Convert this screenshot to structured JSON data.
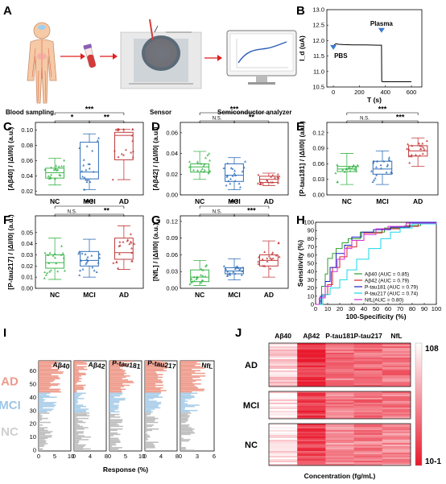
{
  "colors": {
    "nc": "#3ab54a",
    "mci": "#2f6fb8",
    "ad": "#c23b3b",
    "nc_bar": "#bdbdbd",
    "mci_bar": "#a9cde8",
    "ad_bar": "#ee9a8a"
  },
  "panel_letters": {
    "a": "A",
    "b": "B",
    "c": "C",
    "d": "D",
    "e": "E",
    "f": "F",
    "g": "G",
    "h": "H",
    "i": "I",
    "j": "J"
  },
  "panel_a": {
    "step1": "Blood sampling",
    "step2": "Sensor",
    "step3": "Semiconductor analyzer"
  },
  "chart_data": [
    {
      "id": "B",
      "type": "line",
      "xlabel": "T (s)",
      "ylabel": "I_d (uA)",
      "xlim": [
        -50,
        680
      ],
      "ylim": [
        10.5,
        13.0
      ],
      "xticks": [
        0,
        200,
        400,
        600
      ],
      "yticks": [
        10.5,
        11.0,
        11.5,
        12.0,
        12.5,
        13.0
      ],
      "annotations": [
        {
          "text": "PBS",
          "x": 0
        },
        {
          "text": "Plasma",
          "x": 370
        }
      ],
      "x": [
        0,
        10,
        20,
        40,
        80,
        150,
        250,
        340,
        370,
        372,
        380,
        450,
        550,
        600
      ],
      "y": [
        11.82,
        11.87,
        11.9,
        11.88,
        11.87,
        11.86,
        11.86,
        11.85,
        11.85,
        10.68,
        10.67,
        10.67,
        10.67,
        10.67
      ]
    },
    {
      "id": "C",
      "type": "box",
      "ylabel": "[Aβ40] / |ΔI/I0| (a.u.)",
      "categories": [
        "NC",
        "MCI",
        "AD"
      ],
      "ylim": [
        0.015,
        0.11
      ],
      "yticks": [
        0.02,
        0.04,
        0.06,
        0.08,
        0.1
      ],
      "boxes": [
        {
          "group": "NC",
          "min": 0.028,
          "q1": 0.037,
          "median": 0.044,
          "q3": 0.05,
          "max": 0.063
        },
        {
          "group": "MCI",
          "min": 0.022,
          "q1": 0.036,
          "median": 0.045,
          "q3": 0.084,
          "max": 0.095
        },
        {
          "group": "AD",
          "min": 0.035,
          "q1": 0.061,
          "median": 0.093,
          "q3": 0.097,
          "max": 0.101
        }
      ],
      "significance": [
        {
          "pair": [
            "NC",
            "AD"
          ],
          "text": "***"
        },
        {
          "pair": [
            "NC",
            "MCI"
          ],
          "text": "*"
        },
        {
          "pair": [
            "MCI",
            "AD"
          ],
          "text": "**"
        }
      ]
    },
    {
      "id": "D",
      "type": "box",
      "ylabel": "[Aβ42] / |ΔI/I0| (a.u.)",
      "categories": [
        "NC",
        "MCI",
        "AD"
      ],
      "ylim": [
        0,
        0.07
      ],
      "yticks": [
        0.0,
        0.02,
        0.04,
        0.06
      ],
      "boxes": [
        {
          "group": "NC",
          "min": 0.015,
          "q1": 0.022,
          "median": 0.027,
          "q3": 0.03,
          "max": 0.042
        },
        {
          "group": "MCI",
          "min": 0.005,
          "q1": 0.013,
          "median": 0.019,
          "q3": 0.03,
          "max": 0.036
        },
        {
          "group": "AD",
          "min": 0.009,
          "q1": 0.012,
          "median": 0.015,
          "q3": 0.018,
          "max": 0.021
        }
      ],
      "significance": [
        {
          "pair": [
            "NC",
            "AD"
          ],
          "text": "***"
        },
        {
          "pair": [
            "NC",
            "MCI"
          ],
          "text": "N.S."
        },
        {
          "pair": [
            "MCI",
            "AD"
          ],
          "text": "**"
        }
      ]
    },
    {
      "id": "E",
      "type": "box",
      "ylabel": "[P-tau181] / |ΔI/I0| (a.u.)",
      "categories": [
        "NC",
        "MCI",
        "AD"
      ],
      "ylim": [
        0,
        0.14
      ],
      "yticks": [
        0.0,
        0.03,
        0.06,
        0.09,
        0.12
      ],
      "boxes": [
        {
          "group": "NC",
          "min": 0.02,
          "q1": 0.045,
          "median": 0.05,
          "q3": 0.055,
          "max": 0.08
        },
        {
          "group": "MCI",
          "min": 0.02,
          "q1": 0.04,
          "median": 0.05,
          "q3": 0.065,
          "max": 0.085
        },
        {
          "group": "AD",
          "min": 0.055,
          "q1": 0.075,
          "median": 0.085,
          "q3": 0.095,
          "max": 0.11
        }
      ],
      "significance": [
        {
          "pair": [
            "NC",
            "AD"
          ],
          "text": "***"
        },
        {
          "pair": [
            "NC",
            "MCI"
          ],
          "text": "N.S."
        },
        {
          "pair": [
            "MCI",
            "AD"
          ],
          "text": "***"
        }
      ]
    },
    {
      "id": "F",
      "type": "box",
      "ylabel": "[P-tau217] / |ΔI/I0| (a.u.)",
      "categories": [
        "NC",
        "MCI",
        "AD"
      ],
      "ylim": [
        0,
        0.065
      ],
      "yticks": [
        0.0,
        0.01,
        0.02,
        0.03,
        0.04,
        0.05
      ],
      "boxes": [
        {
          "group": "NC",
          "min": 0.008,
          "q1": 0.018,
          "median": 0.023,
          "q3": 0.03,
          "max": 0.045
        },
        {
          "group": "MCI",
          "min": 0.01,
          "q1": 0.02,
          "median": 0.025,
          "q3": 0.033,
          "max": 0.044
        },
        {
          "group": "AD",
          "min": 0.017,
          "q1": 0.026,
          "median": 0.032,
          "q3": 0.045,
          "max": 0.056
        }
      ],
      "significance": [
        {
          "pair": [
            "NC",
            "AD"
          ],
          "text": "***"
        },
        {
          "pair": [
            "NC",
            "MCI"
          ],
          "text": "N.S."
        },
        {
          "pair": [
            "MCI",
            "AD"
          ],
          "text": "**"
        }
      ]
    },
    {
      "id": "G",
      "type": "box",
      "ylabel": "[NfL] / |ΔI/I0| (a.u.)",
      "categories": [
        "NC",
        "MCI",
        "AD"
      ],
      "ylim": [
        0,
        0.13
      ],
      "yticks": [
        0.0,
        0.03,
        0.06,
        0.09,
        0.12
      ],
      "boxes": [
        {
          "group": "NC",
          "min": 0.005,
          "q1": 0.012,
          "median": 0.02,
          "q3": 0.033,
          "max": 0.05
        },
        {
          "group": "MCI",
          "min": 0.015,
          "q1": 0.026,
          "median": 0.031,
          "q3": 0.037,
          "max": 0.053
        },
        {
          "group": "AD",
          "min": 0.02,
          "q1": 0.04,
          "median": 0.05,
          "q3": 0.06,
          "max": 0.085
        }
      ],
      "significance": [
        {
          "pair": [
            "NC",
            "AD"
          ],
          "text": "***"
        },
        {
          "pair": [
            "NC",
            "MCI"
          ],
          "text": "N.S."
        },
        {
          "pair": [
            "MCI",
            "AD"
          ],
          "text": "***"
        }
      ]
    },
    {
      "id": "H",
      "type": "line",
      "xlabel": "100-Specificity (%)",
      "ylabel": "Sensitivity (%)",
      "xlim": [
        0,
        100
      ],
      "ylim": [
        0,
        100
      ],
      "xticks": [
        0,
        10,
        20,
        30,
        40,
        50,
        60,
        70,
        80,
        90,
        100
      ],
      "yticks": [
        0,
        10,
        20,
        30,
        40,
        50,
        60,
        70,
        80,
        90,
        100
      ],
      "series": [
        {
          "name": "Aβ40 (AUC = 0.85)",
          "color": "#2ca02c",
          "x": [
            0,
            3,
            5,
            8,
            10,
            14,
            17,
            22,
            27,
            37,
            57,
            74,
            87,
            100
          ],
          "y": [
            0,
            4,
            22,
            37,
            56,
            62,
            68,
            75,
            80,
            88,
            93,
            96,
            100,
            100
          ]
        },
        {
          "name": "Aβ42 (AUC = 0.79)",
          "color": "#d62728",
          "x": [
            0,
            5,
            10,
            14,
            20,
            26,
            34,
            40,
            55,
            70,
            85,
            100
          ],
          "y": [
            0,
            12,
            24,
            45,
            58,
            70,
            78,
            87,
            92,
            95,
            100,
            100
          ]
        },
        {
          "name": "P-tau181 (AUC = 0.79)",
          "color": "#1f1fbf",
          "x": [
            0,
            4,
            8,
            12,
            17,
            24,
            30,
            38,
            48,
            62,
            78,
            100
          ],
          "y": [
            0,
            10,
            28,
            45,
            62,
            72,
            82,
            88,
            91,
            94,
            100,
            100
          ]
        },
        {
          "name": "P-tau217 (AUC = 0.74)",
          "color": "#17d7e8",
          "x": [
            0,
            6,
            12,
            20,
            26,
            34,
            44,
            54,
            62,
            70,
            80,
            100
          ],
          "y": [
            0,
            12,
            20,
            30,
            42,
            55,
            68,
            80,
            88,
            93,
            98,
            100
          ]
        },
        {
          "name": "NfL(AUC = 0.80)",
          "color": "#d62ad6",
          "x": [
            0,
            3,
            8,
            13,
            18,
            24,
            30,
            40,
            50,
            60,
            75,
            100
          ],
          "y": [
            0,
            8,
            22,
            40,
            55,
            68,
            78,
            85,
            92,
            95,
            99,
            100
          ]
        }
      ]
    },
    {
      "id": "I",
      "type": "bar",
      "orientation": "horizontal",
      "xlabel": "Response (%)",
      "groups": [
        "AD",
        "MCI",
        "NC"
      ],
      "yticks": [
        0,
        10,
        20,
        30,
        40,
        50,
        60
      ],
      "subpanels": [
        {
          "name": "Aβ40",
          "xlim": [
            0,
            10
          ],
          "xticks": [
            0,
            5,
            10
          ]
        },
        {
          "name": "Aβ42",
          "xlim": [
            0,
            8
          ],
          "xticks": [
            0,
            4,
            8
          ]
        },
        {
          "name": "P-tau181",
          "xlim": [
            0,
            10
          ],
          "xticks": [
            0,
            5,
            10
          ]
        },
        {
          "name": "P-tau217",
          "xlim": [
            0,
            8
          ],
          "xticks": [
            0,
            4,
            8
          ]
        },
        {
          "name": "NfL",
          "xlim": [
            0,
            6
          ],
          "xticks": [
            0,
            3,
            6
          ]
        }
      ]
    },
    {
      "id": "J",
      "type": "heatmap",
      "xlabel": "Concentration (fg/mL)",
      "columns": [
        "Aβ40",
        "Aβ42",
        "P-tau181",
        "P-tau217",
        "NfL"
      ],
      "rows": [
        "AD",
        "MCI",
        "NC"
      ],
      "colorbar": {
        "max": "10^8",
        "min": "10^-1"
      }
    }
  ]
}
